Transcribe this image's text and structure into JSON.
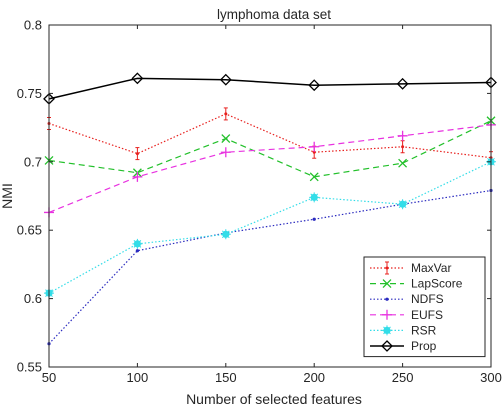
{
  "chart_data": {
    "type": "line",
    "title": "lymphoma data set",
    "xlabel": "Number of selected features",
    "ylabel": "NMI",
    "x": [
      50,
      100,
      150,
      200,
      250,
      300
    ],
    "xlim": [
      50,
      300
    ],
    "ylim": [
      0.55,
      0.8
    ],
    "xticks": [
      "50",
      "100",
      "150",
      "200",
      "250",
      "300"
    ],
    "yticks": [
      "0.55",
      "0.6",
      "0.65",
      "0.7",
      "0.75",
      "0.8"
    ],
    "grid": false,
    "legend_position": "bottom-right",
    "series": [
      {
        "name": "MaxVar",
        "values": [
          0.728,
          0.706,
          0.735,
          0.707,
          0.711,
          0.703
        ],
        "color": "#e8201e",
        "line": "dotted",
        "marker": "errorbar"
      },
      {
        "name": "LapScore",
        "values": [
          0.701,
          0.692,
          0.717,
          0.689,
          0.699,
          0.73
        ],
        "color": "#22c02a",
        "line": "dashed",
        "marker": "x"
      },
      {
        "name": "NDFS",
        "values": [
          0.567,
          0.635,
          0.648,
          0.658,
          0.669,
          0.679
        ],
        "color": "#2b2bbf",
        "line": "dotted",
        "marker": "dot"
      },
      {
        "name": "EUFS",
        "values": [
          0.663,
          0.689,
          0.707,
          0.711,
          0.719,
          0.727
        ],
        "color": "#e832e0",
        "line": "dashed",
        "marker": "plus"
      },
      {
        "name": "RSR",
        "values": [
          0.604,
          0.64,
          0.647,
          0.674,
          0.669,
          0.7
        ],
        "color": "#33dde8",
        "line": "dotted",
        "marker": "star"
      },
      {
        "name": "Prop",
        "values": [
          0.746,
          0.761,
          0.76,
          0.756,
          0.757,
          0.758
        ],
        "color": "#000000",
        "line": "solid",
        "marker": "diamond"
      }
    ]
  }
}
